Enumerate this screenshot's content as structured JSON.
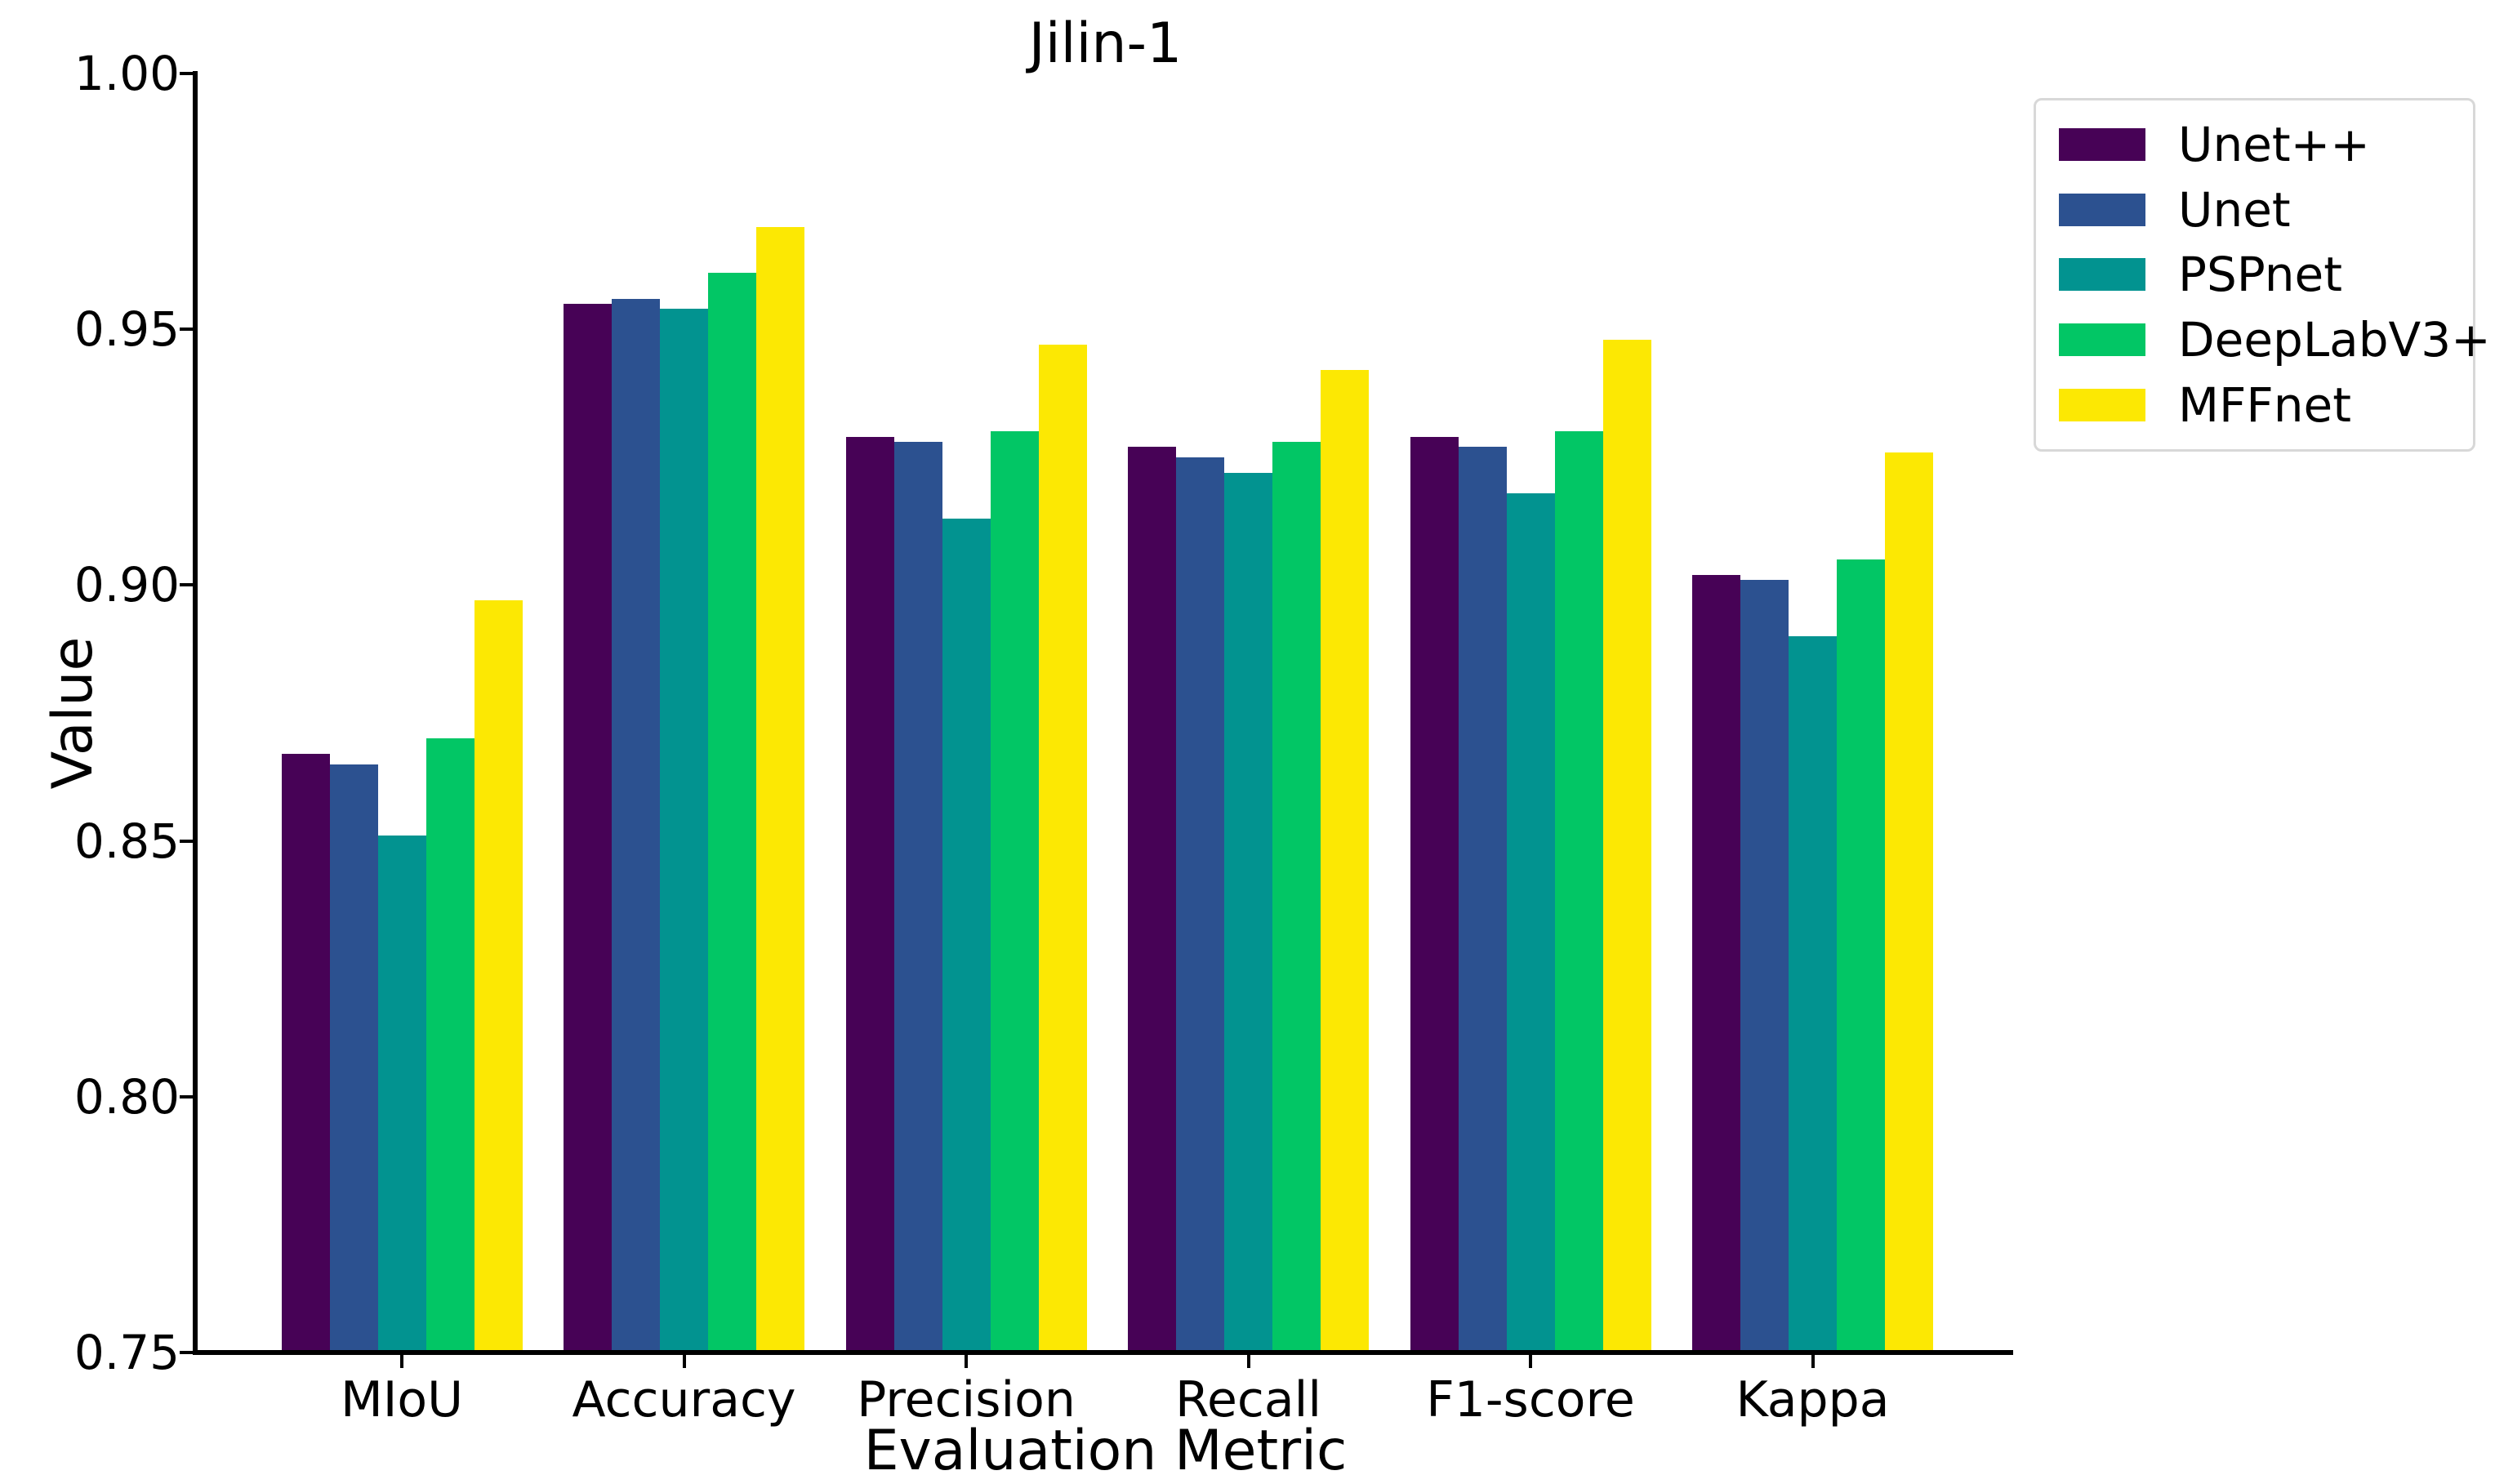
{
  "chart_data": {
    "type": "bar",
    "title": "Jilin-1",
    "xlabel": "Evaluation Metric",
    "ylabel": "Value",
    "ylim": [
      0.75,
      1.0
    ],
    "yticks": [
      0.75,
      0.8,
      0.85,
      0.9,
      0.95,
      1.0
    ],
    "grid": false,
    "legend_position": "upper-right-outside",
    "categories": [
      "MIoU",
      "Accuracy",
      "Precision",
      "Recall",
      "F1-score",
      "Kappa"
    ],
    "series": [
      {
        "name": "Unet++",
        "color": "#470256",
        "values": [
          0.867,
          0.955,
          0.929,
          0.927,
          0.929,
          0.902
        ]
      },
      {
        "name": "Unet",
        "color": "#2c5190",
        "values": [
          0.865,
          0.956,
          0.928,
          0.925,
          0.927,
          0.901
        ]
      },
      {
        "name": "PSPnet",
        "color": "#029390",
        "values": [
          0.851,
          0.954,
          0.913,
          0.922,
          0.918,
          0.89
        ]
      },
      {
        "name": "DeepLabV3+",
        "color": "#02c665",
        "values": [
          0.87,
          0.961,
          0.93,
          0.928,
          0.93,
          0.905
        ]
      },
      {
        "name": "MFFnet",
        "color": "#fce803",
        "values": [
          0.897,
          0.97,
          0.947,
          0.942,
          0.948,
          0.926
        ]
      }
    ]
  }
}
